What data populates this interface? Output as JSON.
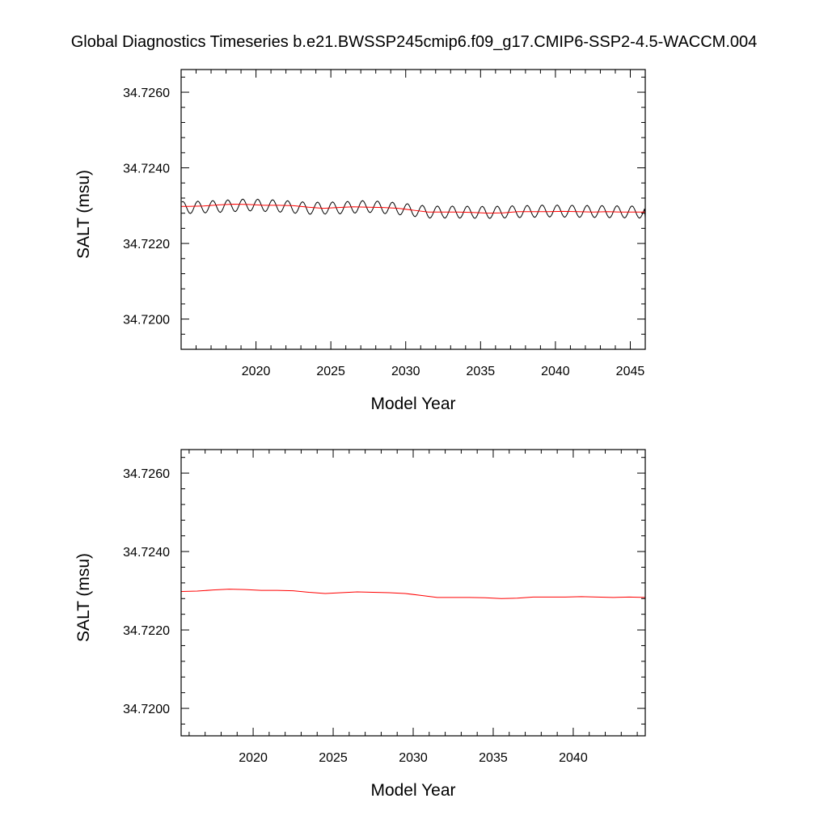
{
  "title": "Global Diagnostics Timeseries b.e21.BWSSP245cmip6.f09_g17.CMIP6-SSP2-4.5-WACCM.004",
  "colors": {
    "monthly_line": "#000000",
    "annual_line": "#ff0000",
    "frame": "#000000",
    "background": "#ffffff"
  },
  "chart_data": [
    {
      "type": "line",
      "xlabel": "Model Year",
      "ylabel": "SALT (msu)",
      "xlim": [
        2015.0,
        2046.0
      ],
      "ylim": [
        34.7192,
        34.7266
      ],
      "x_ticks": [
        2020,
        2025,
        2030,
        2035,
        2040,
        2045
      ],
      "x_tick_labels": [
        "2020",
        "2025",
        "2030",
        "2035",
        "2040",
        "2045"
      ],
      "y_ticks": [
        34.72,
        34.722,
        34.724,
        34.726
      ],
      "y_tick_labels": [
        "34.7200",
        "34.7220",
        "34.7240",
        "34.7260"
      ],
      "grid": false,
      "series": [
        {
          "color": "#000000",
          "kind": "monthly",
          "x_start": 2015.04,
          "x_step": 0.08333,
          "base_x": [
            2015.5,
            2017.5,
            2019.5,
            2021.5,
            2023.5,
            2025.5,
            2027.5,
            2029.5,
            2031.5,
            2033.5,
            2035.5,
            2037.5,
            2039.5,
            2041.5,
            2043.5,
            2045.5
          ],
          "base_y": [
            34.72295,
            34.72298,
            34.72302,
            34.72299,
            34.72293,
            34.72294,
            34.72298,
            34.72292,
            34.72283,
            34.72283,
            34.72282,
            34.72284,
            34.72286,
            34.72285,
            34.72284,
            34.72283
          ],
          "seasonal_amplitude": 0.00016,
          "phase": 0.85,
          "end_value": 34.72268
        },
        {
          "color": "#ff0000",
          "kind": "annual",
          "x": [
            2015.5,
            2016.5,
            2017.5,
            2018.5,
            2019.5,
            2020.5,
            2021.5,
            2022.5,
            2023.5,
            2024.5,
            2025.5,
            2026.5,
            2027.5,
            2028.5,
            2029.5,
            2030.5,
            2031.5,
            2032.5,
            2033.5,
            2034.5,
            2035.5,
            2036.5,
            2037.5,
            2038.5,
            2039.5,
            2040.5,
            2041.5,
            2042.5,
            2043.5,
            2044.5
          ],
          "values": [
            34.72298,
            34.72299,
            34.72302,
            34.72304,
            34.72303,
            34.72301,
            34.72301,
            34.723,
            34.72296,
            34.72293,
            34.72295,
            34.72297,
            34.72296,
            34.72295,
            34.72293,
            34.72288,
            34.72283,
            34.72283,
            34.72283,
            34.72282,
            34.7228,
            34.72281,
            34.72284,
            34.72284,
            34.72284,
            34.72285,
            34.72284,
            34.72283,
            34.72284,
            34.72283
          ]
        }
      ]
    },
    {
      "type": "line",
      "xlabel": "Model Year",
      "ylabel": "SALT (msu)",
      "xlim": [
        2015.5,
        2044.5
      ],
      "ylim": [
        34.7193,
        34.7266
      ],
      "x_ticks": [
        2020,
        2025,
        2030,
        2035,
        2040
      ],
      "x_tick_labels": [
        "2020",
        "2025",
        "2030",
        "2035",
        "2040"
      ],
      "y_ticks": [
        34.72,
        34.722,
        34.724,
        34.726
      ],
      "y_tick_labels": [
        "34.7200",
        "34.7220",
        "34.7240",
        "34.7260"
      ],
      "grid": false,
      "series": [
        {
          "color": "#ff0000",
          "kind": "annual",
          "x": [
            2015.5,
            2016.5,
            2017.5,
            2018.5,
            2019.5,
            2020.5,
            2021.5,
            2022.5,
            2023.5,
            2024.5,
            2025.5,
            2026.5,
            2027.5,
            2028.5,
            2029.5,
            2030.5,
            2031.5,
            2032.5,
            2033.5,
            2034.5,
            2035.5,
            2036.5,
            2037.5,
            2038.5,
            2039.5,
            2040.5,
            2041.5,
            2042.5,
            2043.5,
            2044.5
          ],
          "values": [
            34.72298,
            34.72299,
            34.72302,
            34.72304,
            34.72303,
            34.72301,
            34.72301,
            34.723,
            34.72296,
            34.72293,
            34.72295,
            34.72297,
            34.72296,
            34.72295,
            34.72293,
            34.72288,
            34.72283,
            34.72283,
            34.72283,
            34.72282,
            34.7228,
            34.72281,
            34.72284,
            34.72284,
            34.72284,
            34.72285,
            34.72284,
            34.72283,
            34.72284,
            34.72283
          ]
        }
      ]
    }
  ]
}
